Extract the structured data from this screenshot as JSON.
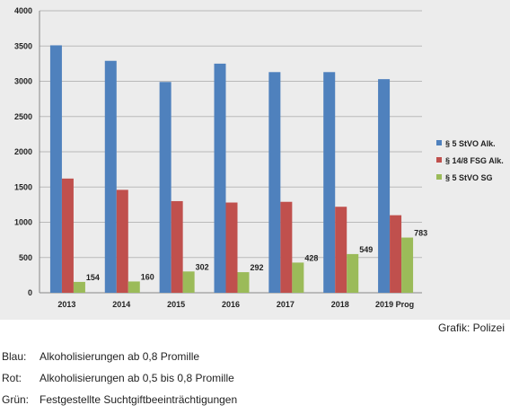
{
  "chart_data": {
    "type": "bar",
    "title": "",
    "xlabel": "",
    "ylabel": "",
    "categories": [
      "2013",
      "2014",
      "2015",
      "2016",
      "2017",
      "2018",
      "2019 Prog"
    ],
    "ylim": [
      0,
      4000
    ],
    "yticks": [
      "0",
      "500",
      "1000",
      "1500",
      "2000",
      "2500",
      "3000",
      "3500",
      "4000"
    ],
    "grid": true,
    "legend_position": "right",
    "series": [
      {
        "name": "§ 5 StVO Alk.",
        "color": "#4f81bd",
        "values": [
          3510,
          3290,
          2990,
          3250,
          3130,
          3130,
          3030
        ]
      },
      {
        "name": "§ 14/8 FSG Alk.",
        "color": "#c0504d",
        "values": [
          1620,
          1460,
          1300,
          1280,
          1290,
          1220,
          1100
        ]
      },
      {
        "name": "§ 5 StVO SG",
        "color": "#9bbb59",
        "values": [
          154,
          160,
          302,
          292,
          428,
          549,
          783
        ],
        "labels": [
          "154",
          "160",
          "302",
          "292",
          "428",
          "549",
          "783"
        ]
      }
    ]
  },
  "credit": "Grafik: Polizei",
  "notes": [
    {
      "key": "Blau:",
      "text": "Alkoholisierungen ab 0,8 Promille"
    },
    {
      "key": "Rot:",
      "text": "Alkoholisierungen ab 0,5 bis 0,8 Promille"
    },
    {
      "key": "Grün:",
      "text": "Festgestellte Suchtgiftbeeinträchtigungen"
    }
  ]
}
